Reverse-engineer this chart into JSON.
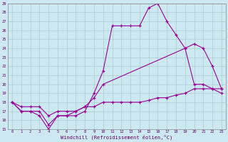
{
  "xlabel": "Windchill (Refroidissement éolien,°C)",
  "background_color": "#cce8f0",
  "line_color": "#990099",
  "grid_color": "#aacccc",
  "ylim": [
    15,
    29
  ],
  "xlim": [
    -0.5,
    23.5
  ],
  "yticks": [
    15,
    16,
    17,
    18,
    19,
    20,
    21,
    22,
    23,
    24,
    25,
    26,
    27,
    28,
    29
  ],
  "xticks": [
    0,
    1,
    2,
    3,
    4,
    5,
    6,
    7,
    8,
    9,
    10,
    11,
    12,
    13,
    14,
    15,
    16,
    17,
    18,
    19,
    20,
    21,
    22,
    23
  ],
  "s1_x": [
    0,
    1,
    2,
    3,
    4,
    5,
    6,
    7,
    8,
    9,
    10,
    11,
    12,
    13,
    14,
    15,
    16,
    17,
    18,
    19,
    20,
    21,
    22,
    23
  ],
  "s1_y": [
    18,
    17,
    17,
    16.5,
    15,
    16.5,
    16.5,
    16.5,
    17,
    19,
    21.5,
    26.5,
    26.5,
    26.5,
    26.5,
    28.5,
    29,
    27,
    25.5,
    24,
    20,
    20,
    19.5,
    19
  ],
  "s2_x": [
    0,
    1,
    2,
    3,
    4,
    5,
    6,
    7,
    8,
    9,
    10,
    19,
    20,
    21,
    22,
    23
  ],
  "s2_y": [
    18,
    17,
    17,
    17,
    15.5,
    16.5,
    16.5,
    17,
    17.5,
    18.5,
    20,
    24,
    24.5,
    24,
    22,
    19.5
  ],
  "s3_x": [
    0,
    1,
    2,
    3,
    4,
    5,
    6,
    7,
    8,
    9,
    10,
    11,
    12,
    13,
    14,
    15,
    16,
    17,
    18,
    19,
    20,
    21,
    22,
    23
  ],
  "s3_y": [
    18,
    17.5,
    17.5,
    17.5,
    16.5,
    17,
    17,
    17,
    17.5,
    17.5,
    18,
    18,
    18,
    18,
    18,
    18.2,
    18.5,
    18.5,
    18.8,
    19,
    19.5,
    19.5,
    19.5,
    19.5
  ]
}
